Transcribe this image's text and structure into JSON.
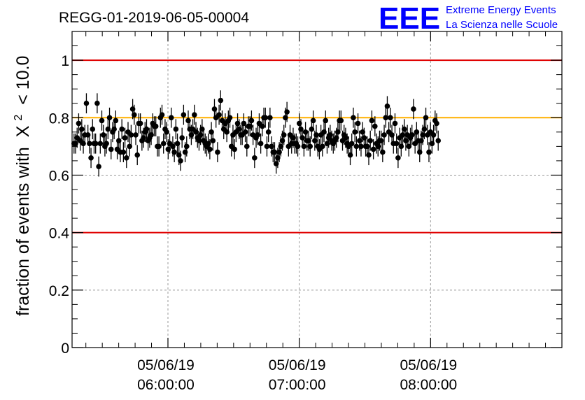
{
  "chart_data": {
    "type": "scatter",
    "title": "REGG-01-2019-06-05-00004",
    "ylabel_prefix": "fraction of events with",
    "ylabel_symbol": "Χ",
    "ylabel_exponent": "2",
    "ylabel_suffix": "< 10.0",
    "ylim": [
      0,
      1.1
    ],
    "yticks": [
      {
        "value": 0,
        "label": "0"
      },
      {
        "value": 0.2,
        "label": "0.2"
      },
      {
        "value": 0.4,
        "label": "0.4"
      },
      {
        "value": 0.6,
        "label": "0.6"
      },
      {
        "value": 0.8,
        "label": "0.8"
      },
      {
        "value": 1.0,
        "label": "1"
      }
    ],
    "xlim_hours": [
      5.27,
      9.0
    ],
    "xticks": [
      {
        "hour": 6,
        "date": "05/06/19",
        "time": "06:00:00"
      },
      {
        "hour": 7,
        "date": "05/06/19",
        "time": "07:00:00"
      },
      {
        "hour": 8,
        "date": "05/06/19",
        "time": "08:00:00"
      }
    ],
    "grid": true,
    "reference_lines": [
      {
        "y": 1.0,
        "color": "#e00000"
      },
      {
        "y": 0.8,
        "color": "#ffb000"
      },
      {
        "y": 0.4,
        "color": "#e00000"
      }
    ],
    "marker_color": "#000000",
    "series": [
      {
        "error_bar": 0.035,
        "x_start_hour": 5.285,
        "x_step_hour": 0.01175,
        "values": [
          0.71,
          0.71,
          0.73,
          0.78,
          0.72,
          0.76,
          0.71,
          0.74,
          0.85,
          0.74,
          0.71,
          0.66,
          0.76,
          0.71,
          0.71,
          0.85,
          0.63,
          0.71,
          0.79,
          0.74,
          0.7,
          0.71,
          0.76,
          0.8,
          0.69,
          0.75,
          0.76,
          0.79,
          0.69,
          0.72,
          0.68,
          0.76,
          0.68,
          0.73,
          0.66,
          0.75,
          0.7,
          0.74,
          0.83,
          0.81,
          0.74,
          0.67,
          0.78,
          0.78,
          0.72,
          0.73,
          0.75,
          0.76,
          0.72,
          0.73,
          0.74,
          0.78,
          0.77,
          0.77,
          0.7,
          0.7,
          0.8,
          0.81,
          0.71,
          0.76,
          0.75,
          0.69,
          0.71,
          0.8,
          0.7,
          0.68,
          0.76,
          0.71,
          0.67,
          0.65,
          0.73,
          0.81,
          0.68,
          0.7,
          0.79,
          0.76,
          0.74,
          0.76,
          0.81,
          0.75,
          0.73,
          0.72,
          0.74,
          0.76,
          0.72,
          0.71,
          0.7,
          0.71,
          0.69,
          0.75,
          0.72,
          0.83,
          0.8,
          0.68,
          0.81,
          0.86,
          0.79,
          0.76,
          0.78,
          0.75,
          0.79,
          0.8,
          0.7,
          0.74,
          0.69,
          0.75,
          0.78,
          0.76,
          0.74,
          0.74,
          0.78,
          0.75,
          0.7,
          0.77,
          0.77,
          0.79,
          0.74,
          0.66,
          0.73,
          0.74,
          0.78,
          0.71,
          0.77,
          0.8,
          0.8,
          0.7,
          0.75,
          0.8,
          0.7,
          0.68,
          0.68,
          0.64,
          0.66,
          0.68,
          0.7,
          0.72,
          0.74,
          0.8,
          0.82,
          0.7,
          0.74,
          0.71,
          0.73,
          0.71,
          0.71,
          0.7,
          0.78,
          0.76,
          0.73,
          0.7,
          0.75,
          0.72,
          0.72,
          0.7,
          0.76,
          0.79,
          0.72,
          0.74,
          0.7,
          0.69,
          0.74,
          0.7,
          0.75,
          0.79,
          0.71,
          0.73,
          0.74,
          0.72,
          0.71,
          0.72,
          0.73,
          0.75,
          0.79,
          0.79,
          0.72,
          0.74,
          0.73,
          0.71,
          0.7,
          0.67,
          0.71,
          0.8,
          0.75,
          0.7,
          0.78,
          0.72,
          0.7,
          0.75,
          0.73,
          0.7,
          0.7,
          0.67,
          0.72,
          0.79,
          0.69,
          0.77,
          0.71,
          0.7,
          0.72,
          0.72,
          0.68,
          0.74,
          0.8,
          0.84,
          0.75,
          0.8,
          0.74,
          0.71,
          0.78,
          0.71,
          0.66,
          0.73,
          0.7,
          0.74,
          0.76,
          0.72,
          0.74,
          0.7,
          0.73,
          0.74,
          0.83,
          0.71,
          0.75,
          0.72,
          0.68,
          0.72,
          0.74,
          0.76,
          0.8,
          0.74,
          0.68,
          0.75,
          0.71,
          0.74,
          0.79,
          0.78,
          0.72
        ]
      }
    ]
  },
  "logo": {
    "letters": "EEE",
    "line1": "Extreme Energy Events",
    "line2": "La Scienza nelle Scuole",
    "color": "#0000ff"
  }
}
